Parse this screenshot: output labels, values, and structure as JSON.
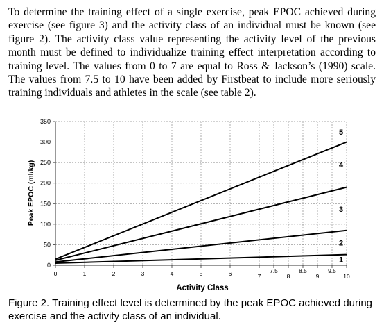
{
  "body_paragraph": "To determine the training effect of a single exercise, peak EPOC achieved during exercise (see figure 3) and the activity class of an individual must be known (see figure 2). The activity class value representing the activity level of the previous month must be defined to individualize training effect interpretation according to training level. The values from 0 to 7 are equal to Ross & Jackson’s (1990) scale. The values from 7.5 to 10 have been added by Firstbeat to include more seriously training individuals and athletes in the scale (see table 2).",
  "caption": "Figure 2. Training effect level is determined by the peak EPOC achieved during exercise and the activity class of an individual.",
  "chart_data": {
    "type": "line",
    "xlabel": "Activity Class",
    "ylabel": "Peak EPOC (ml/kg)",
    "xlim": [
      0,
      10
    ],
    "ylim": [
      0,
      350
    ],
    "grid": true,
    "x_ticks": [
      {
        "value": 0,
        "label": "0"
      },
      {
        "value": 1,
        "label": "1"
      },
      {
        "value": 2,
        "label": "2"
      },
      {
        "value": 3,
        "label": "3"
      },
      {
        "value": 4,
        "label": "4"
      },
      {
        "value": 5,
        "label": "5"
      },
      {
        "value": 6,
        "label": "6"
      },
      {
        "value": 7,
        "label": "7"
      },
      {
        "value": 7.5,
        "label": "7.5"
      },
      {
        "value": 8,
        "label": "8"
      },
      {
        "value": 8.5,
        "label": "8.5"
      },
      {
        "value": 9,
        "label": "9"
      },
      {
        "value": 9.5,
        "label": "9.5"
      },
      {
        "value": 10,
        "label": "10"
      }
    ],
    "y_ticks": [
      "0",
      "50",
      "100",
      "150",
      "200",
      "250",
      "300",
      "350"
    ],
    "series": [
      {
        "label": "1",
        "x": [
          0,
          10
        ],
        "y": [
          5,
          26
        ]
      },
      {
        "label": "2",
        "x": [
          0,
          10
        ],
        "y": [
          8,
          85
        ]
      },
      {
        "label": "3",
        "x": [
          0,
          10
        ],
        "y": [
          12,
          190
        ]
      },
      {
        "label": "5",
        "x": [
          0,
          10
        ],
        "y": [
          15,
          300
        ]
      }
    ],
    "zone_labels": [
      {
        "label": "1",
        "x": 10,
        "y": 14
      },
      {
        "label": "2",
        "x": 10,
        "y": 55
      },
      {
        "label": "3",
        "x": 10,
        "y": 137
      },
      {
        "label": "4",
        "x": 10,
        "y": 245
      },
      {
        "label": "5",
        "x": 10,
        "y": 325
      }
    ]
  }
}
